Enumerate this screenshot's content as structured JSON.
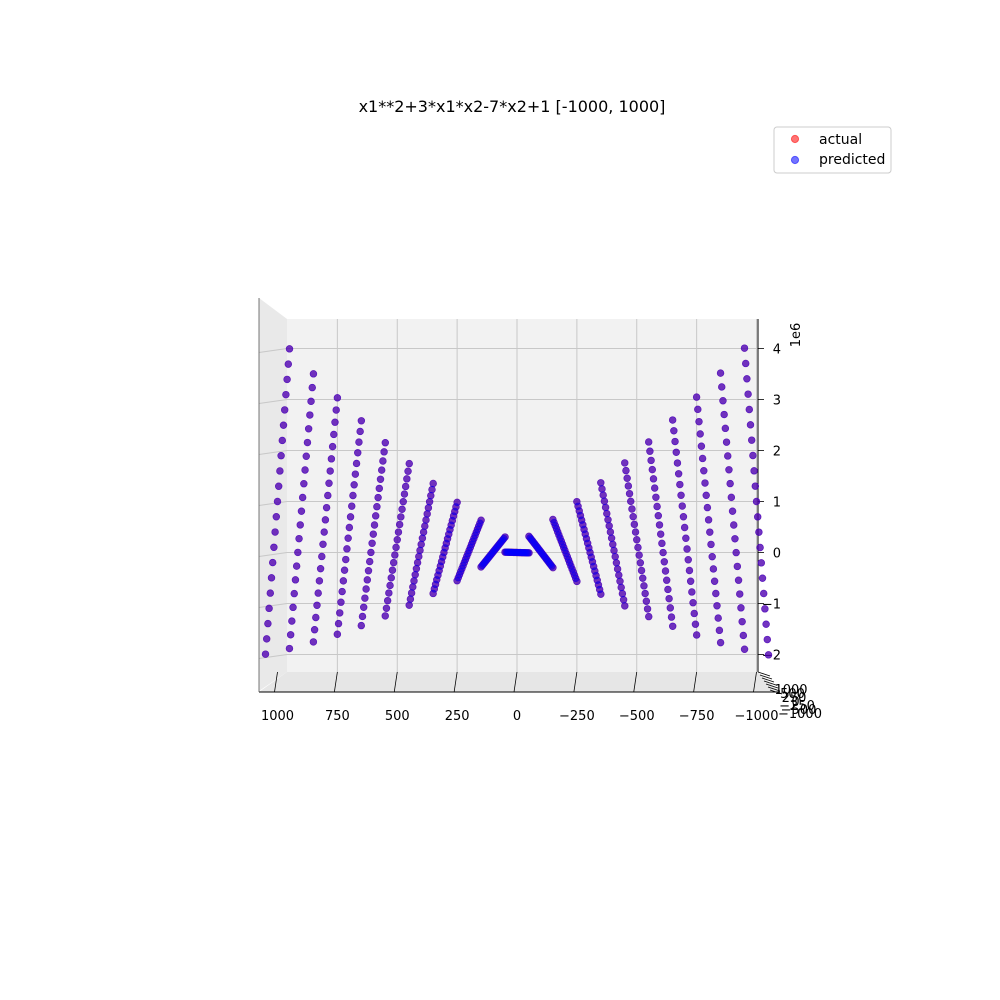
{
  "chart_data": {
    "type": "scatter",
    "projection": "3d",
    "title": "x1**2+3*x1*x2-7*x2+1 [-1000, 1000]",
    "series": [
      {
        "name": "actual",
        "color": "#ff0000",
        "alpha": 0.55
      },
      {
        "name": "predicted",
        "color": "#0000ff",
        "alpha": 0.55
      }
    ],
    "function": "x1**2+3*x1*x2-7*x2+1",
    "x1_grid": [
      -1000,
      -900,
      -800,
      -700,
      -600,
      -500,
      -400,
      -300,
      -200,
      -100,
      0,
      100,
      200,
      300,
      400,
      500,
      600,
      700,
      800,
      900,
      1000
    ],
    "x2_grid": [
      -1000,
      -900,
      -800,
      -700,
      -600,
      -500,
      -400,
      -300,
      -200,
      -100,
      0,
      100,
      200,
      300,
      400,
      500,
      600,
      700,
      800,
      900,
      1000
    ],
    "x_axis": {
      "ticks": [
        "1000",
        "750",
        "500",
        "250",
        "0",
        "−250",
        "−500",
        "−750",
        "−1000"
      ],
      "range": [
        1000,
        -1000
      ]
    },
    "z_axis": {
      "ticks": [
        "4",
        "3",
        "2",
        "1",
        "0",
        "−1",
        "−2"
      ],
      "range": [
        -2.2,
        4.4
      ],
      "offset_label": "1e6"
    },
    "y_axis": {
      "ticks": [
        "1000",
        "500",
        "250",
        "0",
        "−250",
        "−500",
        "−1000"
      ],
      "range": [
        -1000,
        1000
      ]
    },
    "legend": {
      "location": "upper right",
      "labels": [
        "actual",
        "predicted"
      ]
    },
    "grid": true
  }
}
